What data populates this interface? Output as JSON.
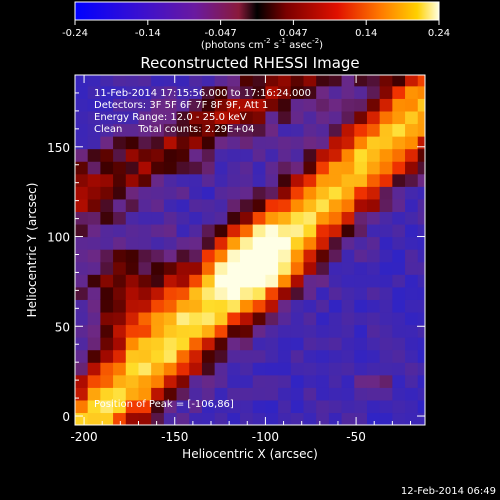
{
  "colorbar": {
    "ticks": [
      "-0.24",
      "-0.14",
      "-0.047",
      "0.047",
      "0.14",
      "0.24"
    ],
    "units_main": "(photons cm",
    "units_sup1": "-2",
    "units_mid": " s",
    "units_sup2": "-1",
    "units_mid2": " asec",
    "units_sup3": "-2",
    "units_end": ")",
    "range": [
      -0.24,
      0.24
    ]
  },
  "chart_data": {
    "type": "heatmap",
    "title": "Reconstructed RHESSI Image",
    "xlabel": "Heliocentric X (arcsec)",
    "ylabel": "Heliocentric Y (arcsec)",
    "xlim": [
      -205,
      -12
    ],
    "ylim": [
      -5,
      190
    ],
    "x_ticks": [
      "-200",
      "-150",
      "-100",
      "-50"
    ],
    "y_ticks": [
      "0",
      "50",
      "100",
      "150"
    ],
    "x_tick_values": [
      -200,
      -150,
      -100,
      -50
    ],
    "y_tick_values": [
      0,
      50,
      100,
      150
    ],
    "annotations": [
      "11-Feb-2014 17:15:56.000 to 17:16:24.000",
      "Detectors: 3F 5F 6F 7F 8F 9F, Att 1",
      "Energy Range: 12.0 - 25.0 keV",
      "Clean     Total counts: 2.29E+04"
    ],
    "peak_label": "Position of Peak = [-106,86]",
    "peak": [
      -106,
      86
    ],
    "colors": {
      "background": "#000000",
      "low": "#1a2aff",
      "mid_low": "#5a2ab0",
      "mid": "#7a1a1a",
      "high": "#ff3a00",
      "peak": "#ffffff"
    }
  },
  "footer": {
    "timestamp": "12-Feb-2014 06:49"
  }
}
